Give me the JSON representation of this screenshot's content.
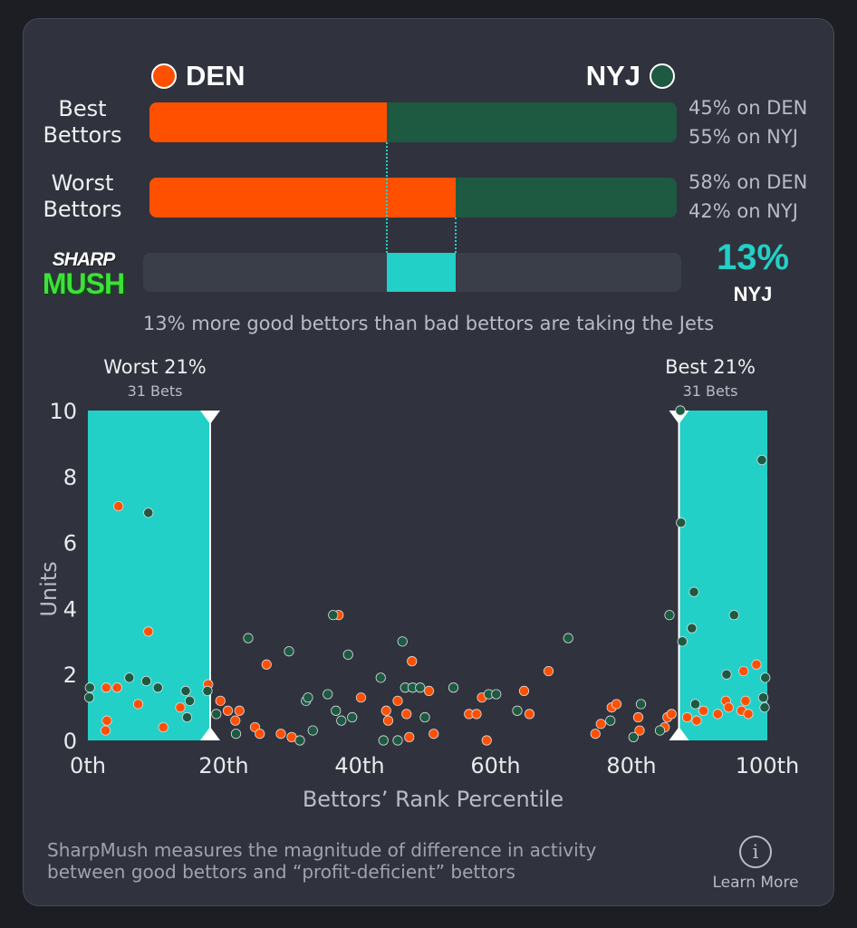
{
  "teams": {
    "home": {
      "code": "DEN",
      "color": "#ff5000"
    },
    "away": {
      "code": "NYJ",
      "color": "#1e5a41"
    }
  },
  "split": {
    "best": {
      "label_line1": "Best",
      "label_line2": "Bettors",
      "den_pct": 45,
      "nyj_pct": 55,
      "den_text": "45% on DEN",
      "nyj_text": "55% on NYJ"
    },
    "worst": {
      "label_line1": "Worst",
      "label_line2": "Bettors",
      "den_pct": 58,
      "nyj_pct": 42,
      "den_text": "58% on DEN",
      "nyj_text": "42% on NYJ"
    }
  },
  "logo": {
    "line1": "SHARP",
    "line2": "MUSH"
  },
  "sharpmush": {
    "value_text": "13%",
    "team": "NYJ",
    "color": "#22d0c7"
  },
  "summary": "13% more good bettors than bad bettors are taking the Jets",
  "ranges": {
    "worst": {
      "title": "Worst 21%",
      "bets": "31 Bets"
    },
    "best": {
      "title": "Best 21%",
      "bets": "31 Bets"
    }
  },
  "chart_data": {
    "type": "scatter",
    "xlabel": "Bettors’ Rank Percentile",
    "ylabel": "Units",
    "xlim": [
      0,
      100
    ],
    "ylim": [
      0,
      10
    ],
    "x_ticks": [
      0,
      20,
      40,
      60,
      80,
      100
    ],
    "x_tick_labels": [
      "0th",
      "20th",
      "40th",
      "60th",
      "80th",
      "100th"
    ],
    "y_ticks": [
      0,
      2,
      4,
      6,
      8,
      10
    ],
    "y_tick_labels": [
      "0",
      "2",
      "4",
      "6",
      "8",
      "10"
    ],
    "shaded_ranges": [
      [
        0,
        18
      ],
      [
        87,
        100
      ]
    ],
    "series": [
      {
        "name": "DEN",
        "color": "#ff5000",
        "points": [
          [
            4.5,
            7.1
          ],
          [
            2.7,
            1.6
          ],
          [
            4.3,
            1.6
          ],
          [
            2.8,
            0.6
          ],
          [
            2.6,
            0.3
          ],
          [
            7.4,
            1.1
          ],
          [
            8.9,
            3.3
          ],
          [
            11.1,
            0.4
          ],
          [
            13.6,
            1.0
          ],
          [
            17.7,
            1.7
          ],
          [
            19.5,
            1.2
          ],
          [
            20.6,
            0.9
          ],
          [
            21.7,
            0.6
          ],
          [
            22.3,
            0.9
          ],
          [
            24.6,
            0.4
          ],
          [
            25.3,
            0.2
          ],
          [
            26.3,
            2.3
          ],
          [
            28.4,
            0.2
          ],
          [
            30.0,
            0.1
          ],
          [
            36.9,
            3.8
          ],
          [
            40.2,
            1.3
          ],
          [
            43.9,
            0.9
          ],
          [
            44.2,
            0.6
          ],
          [
            45.6,
            1.2
          ],
          [
            46.9,
            0.8
          ],
          [
            47.3,
            0.1
          ],
          [
            47.7,
            2.4
          ],
          [
            50.9,
            0.2
          ],
          [
            50.2,
            1.5
          ],
          [
            56.1,
            0.8
          ],
          [
            57.2,
            0.8
          ],
          [
            58.0,
            1.3
          ],
          [
            58.7,
            0.0
          ],
          [
            64.2,
            1.5
          ],
          [
            65.0,
            0.8
          ],
          [
            67.8,
            2.1
          ],
          [
            74.7,
            0.2
          ],
          [
            75.5,
            0.5
          ],
          [
            77.1,
            1.0
          ],
          [
            77.8,
            1.1
          ],
          [
            81.0,
            0.7
          ],
          [
            81.2,
            0.3
          ],
          [
            84.9,
            0.4
          ],
          [
            85.3,
            0.7
          ],
          [
            85.9,
            0.8
          ],
          [
            88.2,
            0.7
          ],
          [
            89.6,
            0.6
          ],
          [
            90.6,
            0.9
          ],
          [
            92.7,
            0.8
          ],
          [
            93.9,
            1.2
          ],
          [
            94.3,
            1.0
          ],
          [
            96.2,
            0.9
          ],
          [
            96.8,
            1.2
          ],
          [
            96.5,
            2.1
          ],
          [
            97.2,
            0.8
          ],
          [
            98.4,
            2.3
          ]
        ]
      },
      {
        "name": "NYJ",
        "color": "#1e5a41",
        "points": [
          [
            0.3,
            1.6
          ],
          [
            0.2,
            1.3
          ],
          [
            6.1,
            1.9
          ],
          [
            8.6,
            1.8
          ],
          [
            8.9,
            6.9
          ],
          [
            10.3,
            1.6
          ],
          [
            14.4,
            1.5
          ],
          [
            14.6,
            0.7
          ],
          [
            15.0,
            1.2
          ],
          [
            17.6,
            1.5
          ],
          [
            18.9,
            0.8
          ],
          [
            21.8,
            0.2
          ],
          [
            23.6,
            3.1
          ],
          [
            29.6,
            2.7
          ],
          [
            31.2,
            0.0
          ],
          [
            32.1,
            1.2
          ],
          [
            32.4,
            1.3
          ],
          [
            33.1,
            0.3
          ],
          [
            35.3,
            1.4
          ],
          [
            36.1,
            3.8
          ],
          [
            36.5,
            0.9
          ],
          [
            37.3,
            0.6
          ],
          [
            38.3,
            2.6
          ],
          [
            38.9,
            0.7
          ],
          [
            43.1,
            1.9
          ],
          [
            43.5,
            0.0
          ],
          [
            45.6,
            0.0
          ],
          [
            46.3,
            3.0
          ],
          [
            46.7,
            1.6
          ],
          [
            47.8,
            1.6
          ],
          [
            48.9,
            1.6
          ],
          [
            49.6,
            0.7
          ],
          [
            53.8,
            1.6
          ],
          [
            59.0,
            1.4
          ],
          [
            60.1,
            1.4
          ],
          [
            63.2,
            0.9
          ],
          [
            70.7,
            3.1
          ],
          [
            76.9,
            0.6
          ],
          [
            80.3,
            0.1
          ],
          [
            81.4,
            1.1
          ],
          [
            84.2,
            0.3
          ],
          [
            85.6,
            3.8
          ],
          [
            87.2,
            10.0
          ],
          [
            87.3,
            6.6
          ],
          [
            87.5,
            3.0
          ],
          [
            88.9,
            3.4
          ],
          [
            89.2,
            4.5
          ],
          [
            89.4,
            1.1
          ],
          [
            94.0,
            2.0
          ],
          [
            95.1,
            3.8
          ],
          [
            99.2,
            8.5
          ],
          [
            99.4,
            1.3
          ],
          [
            99.6,
            1.0
          ],
          [
            99.7,
            1.9
          ]
        ]
      }
    ]
  },
  "footnote": {
    "line1": "SharpMush measures the magnitude of difference in activity",
    "line2": "between good bettors and “profit-deficient” bettors"
  },
  "learn_more": {
    "icon": "info-icon",
    "label": "Learn More"
  }
}
